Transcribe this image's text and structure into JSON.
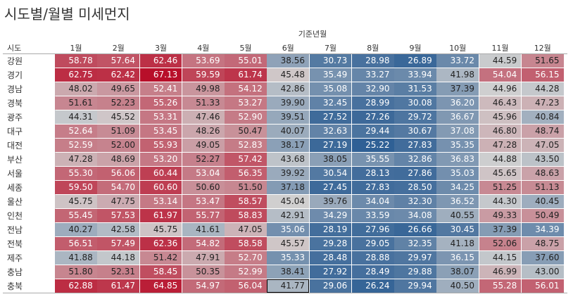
{
  "title": "시도별/월별 미세먼지",
  "column_group_label": "기준년월",
  "row_field_label": "시도",
  "chart_data": {
    "type": "heatmap",
    "title": "시도별/월별 미세먼지",
    "x_label": "기준년월",
    "y_label": "시도",
    "columns": [
      "1월",
      "2월",
      "3월",
      "4월",
      "5월",
      "6월",
      "7월",
      "8월",
      "9월",
      "10월",
      "11월",
      "12월"
    ],
    "rows": [
      "강원",
      "경기",
      "경남",
      "경북",
      "광주",
      "대구",
      "대전",
      "부산",
      "서울",
      "세종",
      "울산",
      "인천",
      "전남",
      "전북",
      "제주",
      "충남",
      "충북"
    ],
    "values": [
      [
        58.78,
        57.64,
        62.46,
        53.69,
        55.01,
        38.56,
        30.73,
        28.98,
        26.89,
        33.72,
        44.59,
        51.65
      ],
      [
        62.75,
        62.42,
        67.13,
        59.59,
        61.74,
        45.48,
        35.49,
        33.27,
        33.94,
        41.98,
        54.04,
        56.15
      ],
      [
        48.02,
        49.65,
        52.41,
        49.98,
        54.12,
        42.86,
        35.08,
        32.9,
        31.53,
        37.39,
        44.96,
        44.28
      ],
      [
        51.61,
        52.23,
        55.26,
        51.33,
        53.27,
        39.9,
        32.45,
        28.99,
        30.08,
        36.2,
        46.43,
        47.23
      ],
      [
        44.31,
        45.52,
        53.31,
        47.46,
        52.9,
        39.51,
        27.52,
        27.26,
        29.72,
        36.67,
        45.96,
        40.84
      ],
      [
        52.64,
        51.09,
        53.45,
        48.26,
        50.47,
        40.07,
        32.63,
        29.44,
        30.67,
        37.08,
        46.8,
        48.74
      ],
      [
        52.59,
        52.0,
        55.93,
        49.05,
        52.83,
        38.17,
        27.19,
        25.22,
        27.83,
        35.35,
        47.28,
        47.05
      ],
      [
        47.28,
        48.69,
        53.2,
        52.27,
        57.42,
        43.68,
        38.05,
        35.55,
        32.86,
        36.83,
        44.88,
        43.5
      ],
      [
        55.3,
        56.06,
        60.44,
        53.04,
        56.35,
        39.92,
        30.54,
        28.13,
        27.86,
        35.03,
        45.65,
        48.63
      ],
      [
        59.5,
        54.7,
        60.6,
        50.6,
        51.5,
        37.18,
        27.45,
        27.83,
        28.5,
        34.25,
        51.25,
        51.13
      ],
      [
        45.75,
        47.75,
        53.14,
        53.47,
        58.57,
        45.04,
        39.76,
        34.04,
        32.3,
        36.52,
        44.3,
        40.45
      ],
      [
        55.45,
        57.53,
        61.97,
        55.77,
        58.83,
        42.91,
        34.29,
        33.59,
        34.08,
        40.55,
        49.33,
        50.49
      ],
      [
        40.27,
        42.58,
        45.75,
        41.61,
        47.05,
        35.06,
        28.19,
        27.96,
        26.66,
        30.45,
        37.39,
        34.39
      ],
      [
        56.51,
        57.49,
        62.36,
        54.82,
        58.58,
        45.57,
        29.28,
        29.05,
        32.35,
        41.18,
        52.06,
        48.75
      ],
      [
        41.88,
        44.18,
        51.42,
        47.91,
        52.7,
        35.33,
        28.48,
        28.88,
        29.97,
        36.15,
        44.15,
        37.6
      ],
      [
        51.8,
        52.31,
        58.45,
        50.35,
        52.99,
        38.41,
        27.92,
        28.49,
        29.88,
        38.07,
        46.99,
        43.0
      ],
      [
        62.88,
        61.47,
        64.85,
        54.97,
        56.04,
        41.77,
        29.06,
        26.24,
        29.94,
        40.5,
        55.28,
        56.01
      ]
    ],
    "value_format": "0.00",
    "color_scale": {
      "type": "diverging",
      "low_color": "#2e5f94",
      "mid_color": "#d0d0d0",
      "high_color": "#b80f2a",
      "domain": [
        25,
        45,
        67
      ]
    },
    "highlighted_cell": {
      "row": "충북",
      "column": "6월"
    }
  }
}
